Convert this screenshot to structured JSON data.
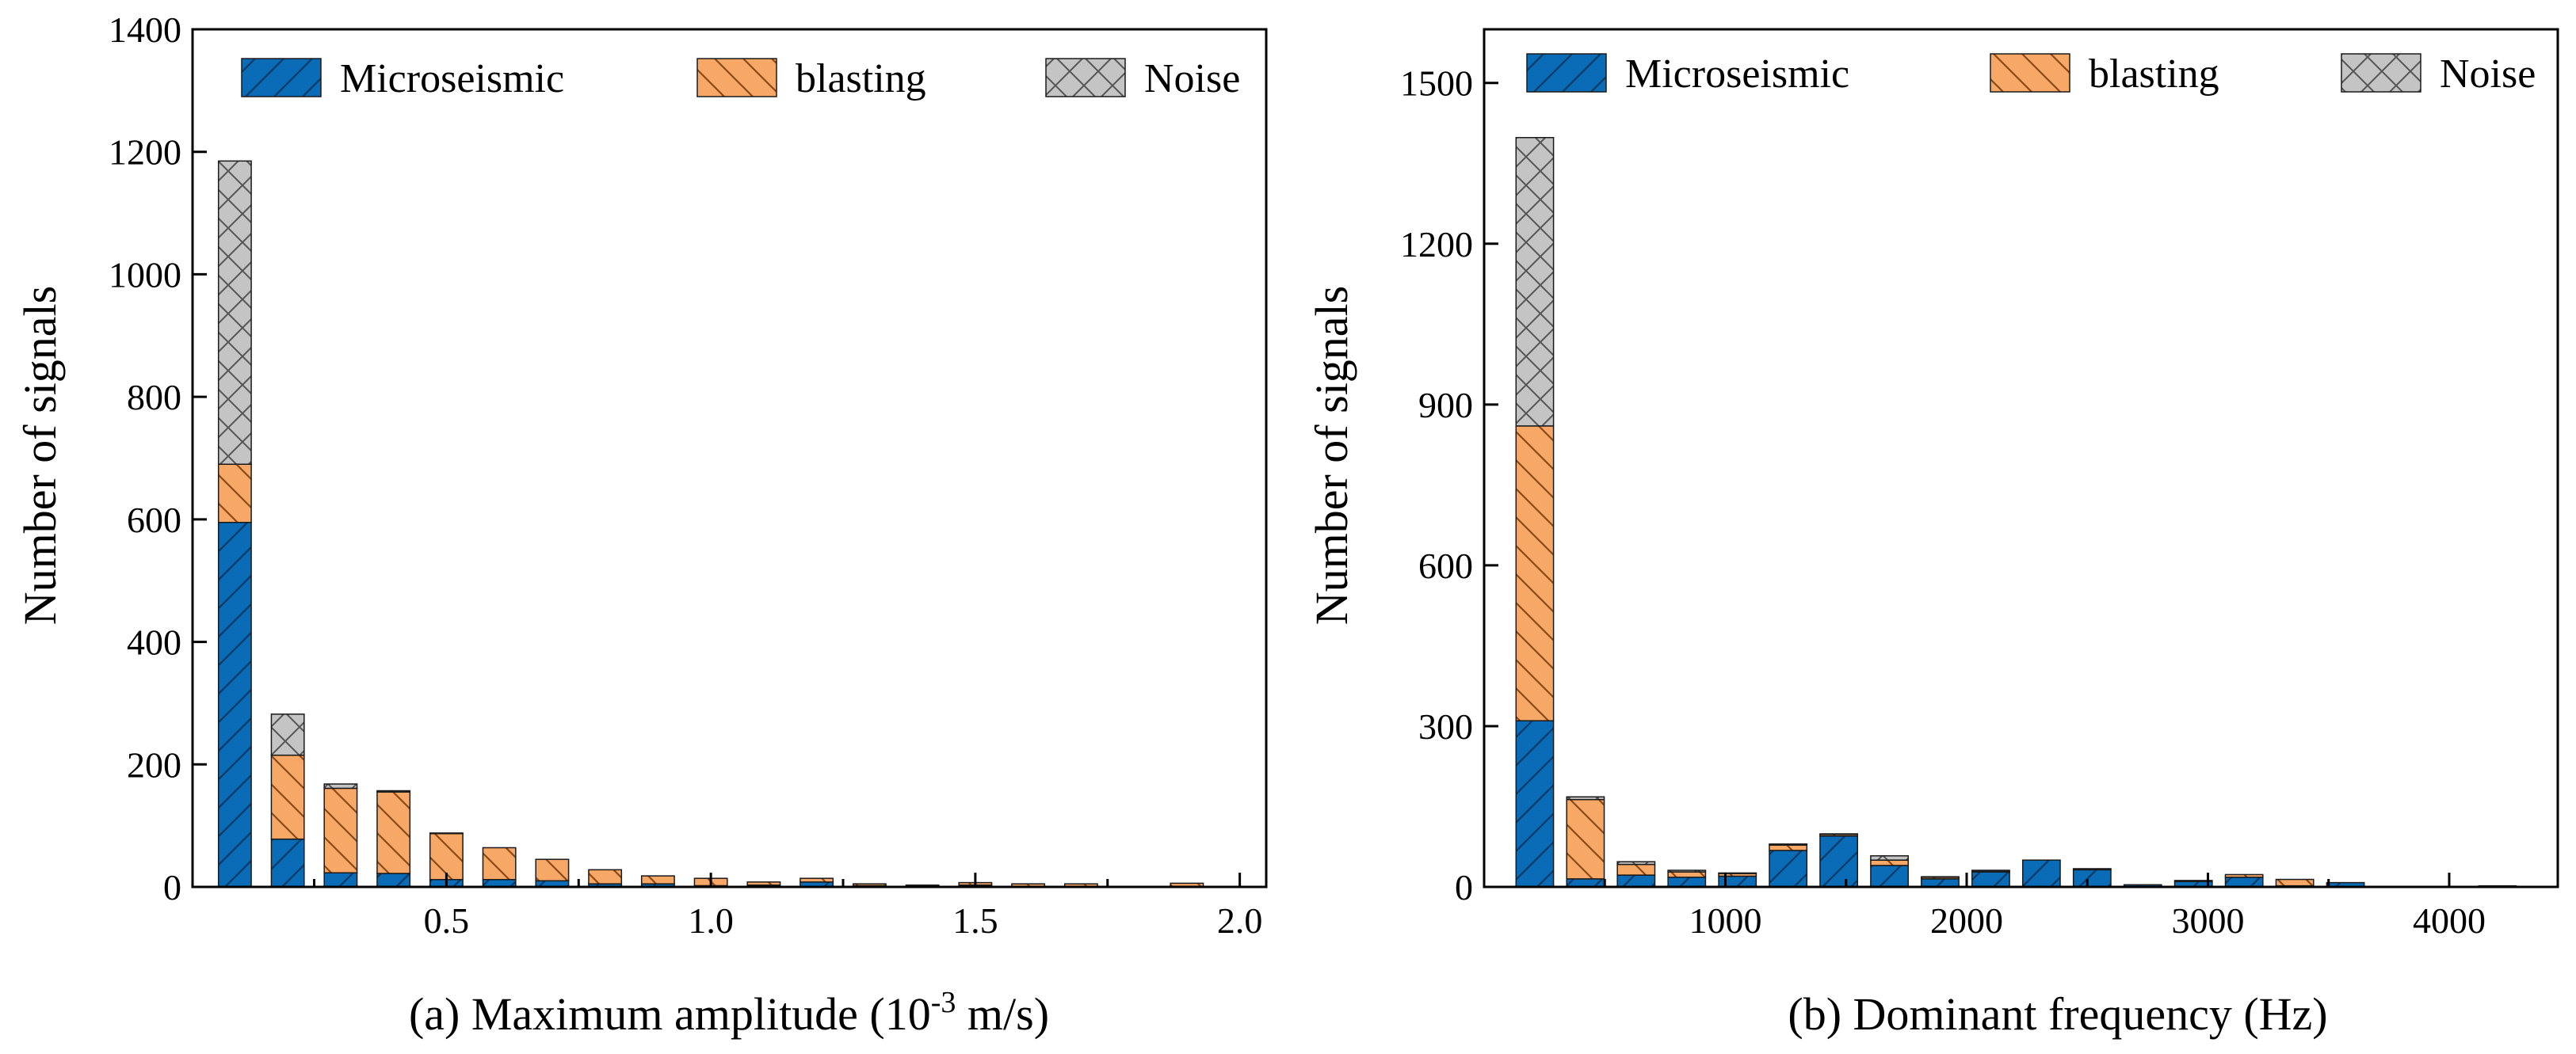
{
  "colors": {
    "microseismic": "#0a6bb7",
    "blasting": "#f7a866",
    "noise": "#c4c4c4",
    "axis": "#000000"
  },
  "chart_data": [
    {
      "type": "bar",
      "stacked": true,
      "title": "",
      "xlabel": "(a) Maximum amplitude (10",
      "xlabel_superscript": "-3",
      "xlabel_suffix": " m/s)",
      "ylabel": "Number of signals",
      "xlim": [
        0.02,
        2.05
      ],
      "ylim": [
        0,
        1400
      ],
      "bin_width": 0.1,
      "x_ticks": [
        0.5,
        1.0,
        1.5,
        2.0
      ],
      "x_tick_labels": [
        "0.5",
        "1.0",
        "1.5",
        "2.0"
      ],
      "y_ticks": [
        0,
        200,
        400,
        600,
        800,
        1000,
        1200,
        1400
      ],
      "y_tick_labels": [
        "0",
        "200",
        "400",
        "600",
        "800",
        "1000",
        "1200",
        "1400"
      ],
      "legend": [
        "Microseismic",
        "blasting",
        "Noise"
      ],
      "legend_position": "top",
      "x": [
        0.1,
        0.2,
        0.3,
        0.4,
        0.5,
        0.6,
        0.7,
        0.8,
        0.9,
        1.0,
        1.1,
        1.2,
        1.3,
        1.4,
        1.5,
        1.6,
        1.7,
        1.8,
        1.9,
        2.0
      ],
      "series": [
        {
          "name": "Microseismic",
          "values": [
            595,
            78,
            23,
            22,
            12,
            12,
            10,
            5,
            5,
            2,
            3,
            8,
            2,
            1,
            3,
            1,
            1,
            0,
            1,
            0
          ]
        },
        {
          "name": "blasting",
          "values": [
            95,
            137,
            138,
            133,
            75,
            52,
            35,
            23,
            13,
            12,
            5,
            6,
            3,
            2,
            4,
            4,
            4,
            0,
            5,
            0
          ]
        },
        {
          "name": "Noise",
          "values": [
            495,
            67,
            7,
            2,
            1,
            0,
            0,
            0,
            0,
            0,
            0,
            0,
            0,
            0,
            0,
            0,
            0,
            0,
            0,
            0
          ]
        }
      ]
    },
    {
      "type": "bar",
      "stacked": true,
      "title": "",
      "xlabel": "(b) Dominant frequency (Hz)",
      "ylabel": "Number of signals",
      "xlim": [
        0,
        4450
      ],
      "ylim": [
        0,
        1600
      ],
      "bin_width": 210,
      "x_ticks": [
        1000,
        2000,
        3000,
        4000
      ],
      "x_tick_labels": [
        "1000",
        "2000",
        "3000",
        "4000"
      ],
      "y_ticks": [
        0,
        300,
        600,
        900,
        1200,
        1500
      ],
      "y_tick_labels": [
        "0",
        "300",
        "600",
        "900",
        "1200",
        "1500"
      ],
      "legend": [
        "Microseismic",
        "blasting",
        "Noise"
      ],
      "legend_position": "top",
      "x": [
        210,
        420,
        630,
        840,
        1050,
        1260,
        1470,
        1680,
        1890,
        2100,
        2310,
        2520,
        2730,
        2940,
        3150,
        3360,
        3570,
        3780,
        3990,
        4200,
        4410
      ],
      "series": [
        {
          "name": "Microseismic",
          "values": [
            310,
            15,
            22,
            18,
            20,
            68,
            95,
            40,
            15,
            28,
            50,
            32,
            4,
            10,
            18,
            2,
            8,
            0,
            0,
            2,
            0
          ]
        },
        {
          "name": "blasting",
          "values": [
            550,
            148,
            20,
            10,
            5,
            10,
            3,
            10,
            3,
            2,
            0,
            2,
            0,
            2,
            5,
            12,
            0,
            0,
            0,
            0,
            0
          ]
        },
        {
          "name": "Noise",
          "values": [
            538,
            5,
            5,
            3,
            1,
            2,
            1,
            8,
            1,
            1,
            0,
            0,
            0,
            0,
            0,
            0,
            0,
            0,
            0,
            0,
            0
          ]
        }
      ]
    }
  ]
}
